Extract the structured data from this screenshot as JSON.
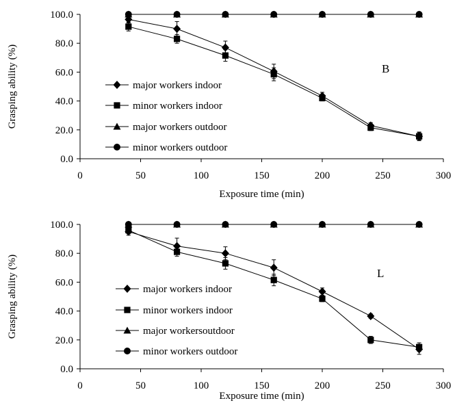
{
  "chart_data": [
    {
      "type": "line",
      "title": "",
      "panel_label": "B",
      "xlabel": "Exposure time (min)",
      "ylabel": "Grasping ability (%)",
      "xlim": [
        0,
        300
      ],
      "ylim": [
        0,
        100
      ],
      "xticks": [
        0,
        50,
        100,
        150,
        200,
        250,
        300
      ],
      "xtick_labels": [
        "0",
        "50",
        "100",
        "150",
        "200",
        "250",
        "300"
      ],
      "yticks": [
        0,
        20,
        40,
        60,
        80,
        100
      ],
      "ytick_labels": [
        "0.0",
        "20.0",
        "40.0",
        "60.0",
        "80.0",
        "100.0"
      ],
      "grid": false,
      "legend_position": "left",
      "x": [
        40,
        80,
        120,
        160,
        200,
        240,
        280
      ],
      "series": [
        {
          "name": "major workers indoor",
          "marker": "diamond",
          "values": [
            96.5,
            90,
            77,
            60.5,
            43.5,
            23,
            15.5
          ],
          "errors": [
            2.5,
            5,
            4.5,
            5,
            2.5,
            2,
            2.5
          ]
        },
        {
          "name": "minor workers indoor",
          "marker": "square",
          "values": [
            91.5,
            83,
            71.5,
            58.5,
            42,
            21.5,
            15.5
          ],
          "errors": [
            3,
            3,
            4,
            4.5,
            2,
            2,
            3
          ]
        },
        {
          "name": "major workers outdoor",
          "marker": "triangle",
          "values": [
            100,
            100,
            100,
            100,
            100,
            100,
            100
          ],
          "errors": [
            0,
            0,
            0,
            0,
            0,
            0,
            0
          ]
        },
        {
          "name": "minor workers outdoor",
          "marker": "circle",
          "values": [
            100,
            100,
            100,
            100,
            100,
            100,
            100
          ],
          "errors": [
            0,
            0,
            0,
            0,
            0,
            0,
            0
          ]
        }
      ]
    },
    {
      "type": "line",
      "title": "",
      "panel_label": "L",
      "xlabel": "Exposure time (min)",
      "ylabel": "Grasping ability (%)",
      "xlim": [
        0,
        300
      ],
      "ylim": [
        0,
        100
      ],
      "xticks": [
        0,
        50,
        100,
        150,
        200,
        250,
        300
      ],
      "xtick_labels": [
        "0",
        "50",
        "100",
        "150",
        "200",
        "250",
        "300"
      ],
      "yticks": [
        0,
        20,
        40,
        60,
        80,
        100
      ],
      "ytick_labels": [
        "0.0",
        "20.0",
        "40.0",
        "60.0",
        "80.0",
        "100.0"
      ],
      "grid": false,
      "legend_position": "left",
      "x": [
        40,
        80,
        120,
        160,
        200,
        240,
        280
      ],
      "series": [
        {
          "name": "major workers indoor",
          "marker": "diamond",
          "values": [
            95,
            85,
            80,
            70,
            53.5,
            36.5,
            13.5
          ],
          "errors": [
            2.5,
            5.5,
            4.5,
            5.5,
            2.5,
            1.5,
            3.5
          ]
        },
        {
          "name": "minor workers indoor",
          "marker": "square",
          "values": [
            96,
            81,
            73,
            61.5,
            48.5,
            20,
            15
          ],
          "errors": [
            2.5,
            3,
            4,
            4,
            2,
            2.5,
            3
          ]
        },
        {
          "name": "major workersoutdoor",
          "marker": "triangle",
          "values": [
            100,
            100,
            100,
            100,
            100,
            100,
            100
          ],
          "errors": [
            0,
            0,
            0,
            0,
            0,
            0,
            0
          ]
        },
        {
          "name": "minor workers outdoor",
          "marker": "circle",
          "values": [
            100,
            100,
            100,
            100,
            100,
            100,
            100
          ],
          "errors": [
            0,
            0,
            0,
            0,
            0,
            0,
            0
          ]
        }
      ]
    }
  ]
}
